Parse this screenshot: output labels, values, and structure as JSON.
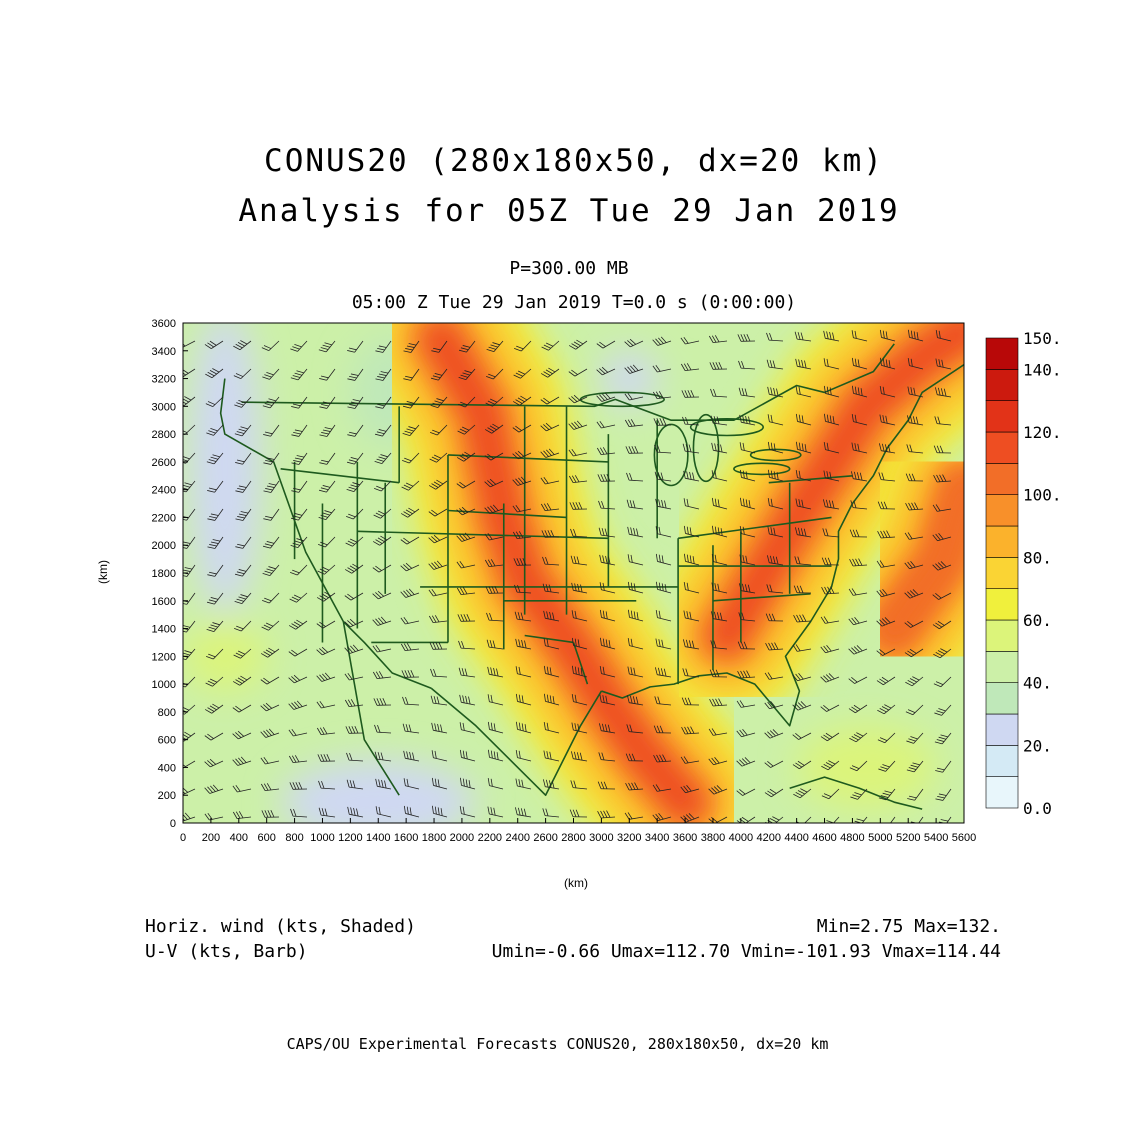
{
  "title_line1": "CONUS20 (280x180x50, dx=20 km)",
  "title_line2": "Analysis for 05Z Tue 29 Jan 2019",
  "level_label": "P=300.00 MB",
  "time_label": "05:00 Z Tue 29 Jan 2019   T=0.0 s (0:00:00)",
  "chart_data": {
    "type": "heatmap",
    "xlabel": "(km)",
    "ylabel": "(km)",
    "xlim": [
      0,
      5600
    ],
    "ylim": [
      0,
      3600
    ],
    "x_ticks": [
      0,
      200,
      400,
      600,
      800,
      1000,
      1200,
      1400,
      1600,
      1800,
      2000,
      2200,
      2400,
      2600,
      2800,
      3000,
      3200,
      3400,
      3600,
      3800,
      4000,
      4200,
      4400,
      4600,
      4800,
      5000,
      5200,
      5400,
      5600
    ],
    "y_ticks": [
      0,
      200,
      400,
      600,
      800,
      1000,
      1200,
      1400,
      1600,
      1800,
      2000,
      2200,
      2400,
      2600,
      2800,
      3000,
      3200,
      3400,
      3600
    ],
    "colorbar": {
      "labels": [
        "150.",
        "140.",
        "120.",
        "100.",
        "80.",
        "60.",
        "40.",
        "20.",
        "0.0"
      ],
      "bins": [
        0,
        10,
        20,
        30,
        40,
        50,
        60,
        70,
        80,
        90,
        100,
        110,
        120,
        130,
        140,
        150
      ],
      "colors": [
        "#e8f6fb",
        "#d4eaf5",
        "#cfd8f2",
        "#bfe8b9",
        "#ccf0a8",
        "#dcf47a",
        "#f0f03c",
        "#fad434",
        "#fbb22c",
        "#f8902a",
        "#f26e28",
        "#ee4e22",
        "#e23318",
        "#cc1a0e",
        "#b80808"
      ]
    },
    "field": "Horiz. wind (kts, Shaded)",
    "vector": "U-V (kts, Barb)",
    "min": "Min=2.75",
    "max": "Max=132.",
    "uv_stats": "Umin=-0.66 Umax=112.70 Vmin=-101.93 Vmax=114.44",
    "jets": [
      {
        "path_km": [
          [
            1850,
            3480
          ],
          [
            2150,
            2950
          ],
          [
            2300,
            2200
          ],
          [
            2450,
            1750
          ],
          [
            2800,
            1250
          ],
          [
            3050,
            850
          ],
          [
            3300,
            500
          ],
          [
            3600,
            150
          ]
        ],
        "peak": 115
      },
      {
        "path_km": [
          [
            3900,
            1350
          ],
          [
            4400,
            2200
          ],
          [
            4900,
            3000
          ],
          [
            5300,
            3350
          ],
          [
            5600,
            3550
          ]
        ],
        "peak": 112
      },
      {
        "path_km": [
          [
            5600,
            2400
          ],
          [
            5450,
            1900
          ],
          [
            5100,
            1400
          ]
        ],
        "peak": 105
      }
    ]
  },
  "info": {
    "field_label": "Horiz. wind (kts, Shaded)",
    "vector_label": "U-V (kts, Barb)",
    "minmax": "Min=2.75 Max=132.",
    "uv_stats": "Umin=-0.66 Umax=112.70 Vmin=-101.93 Vmax=114.44"
  },
  "footer": "CAPS/OU Experimental Forecasts  CONUS20, 280x180x50, dx=20 km"
}
